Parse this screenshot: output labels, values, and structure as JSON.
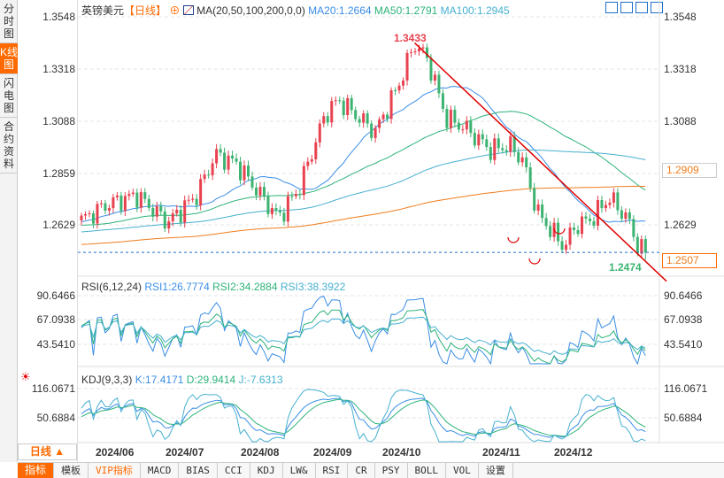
{
  "vertical_tabs": [
    {
      "label": "分时图"
    },
    {
      "label": "K线图",
      "active": true
    },
    {
      "label": "闪电图"
    },
    {
      "label": "合约资料"
    }
  ],
  "header": {
    "symbol": "英镑美元",
    "period": "【日线】",
    "ma_label": "MA(20,50,100,200,0,0)",
    "ma20": "MA20:1.2664",
    "ma50": "MA50:1.2791",
    "ma100": "MA100:1.2945"
  },
  "price_axis": {
    "labels": [
      "1.3548",
      "1.3318",
      "1.3088",
      "1.2859",
      "1.2629"
    ],
    "ma200_value": "1.2909",
    "current_price": "1.2507",
    "high_label": "1.3433",
    "low_label": "1.2474"
  },
  "rsi": {
    "title": "RSI(6,12,24)",
    "rsi1": "RSI1:26.7774",
    "rsi2": "RSI2:34.2884",
    "rsi3": "RSI3:38.3922",
    "labels": [
      "90.6466",
      "67.0938",
      "43.5410"
    ]
  },
  "kdj": {
    "title": "KDJ(9,3,3)",
    "k": "K:17.4171",
    "d": "D:29.9414",
    "j": "J:-7.6313",
    "labels": [
      "116.0671",
      "50.6884"
    ]
  },
  "period_selector": "日线 ▲",
  "dates": [
    "2024/06",
    "2024/07",
    "2024/08",
    "2024/09",
    "2024/10",
    "2024/11",
    "2024/12"
  ],
  "bottom_tabs": [
    "指标",
    "模板",
    "VIP指标",
    "MACD",
    "BIAS",
    "CCI",
    "KDJ",
    "LW&",
    "RSI",
    "CR",
    "PSY",
    "BOLL",
    "VOL",
    "设置"
  ],
  "colors": {
    "up": "#e8414f",
    "down": "#3cb371",
    "ma20": "#3a8ee6",
    "ma50": "#2db37a",
    "ma100": "#46b0d0",
    "ma200": "#f07d1e",
    "accent": "#ff6a00",
    "trend": "#e00000"
  },
  "chart_data": {
    "type": "candlestick",
    "price_range": [
      1.24,
      1.358
    ],
    "keypoints": [
      [
        "2024/05/22",
        1.265
      ],
      [
        "2024/06/01",
        1.272
      ],
      [
        "2024/06/12",
        1.276
      ],
      [
        "2024/06/24",
        1.264
      ],
      [
        "2024/07/05",
        1.276
      ],
      [
        "2024/07/12",
        1.294
      ],
      [
        "2024/07/20",
        1.29
      ],
      [
        "2024/08/05",
        1.266
      ],
      [
        "2024/08/13",
        1.279
      ],
      [
        "2024/08/23",
        1.312
      ],
      [
        "2024/08/28",
        1.318
      ],
      [
        "2024/09/05",
        1.31
      ],
      [
        "2024/09/11",
        1.304
      ],
      [
        "2024/09/20",
        1.325
      ],
      [
        "2024/09/26",
        1.343
      ],
      [
        "2024/10/01",
        1.336
      ],
      [
        "2024/10/08",
        1.31
      ],
      [
        "2024/10/15",
        1.306
      ],
      [
        "2024/10/25",
        1.296
      ],
      [
        "2024/11/01",
        1.298
      ],
      [
        "2024/11/06",
        1.292
      ],
      [
        "2024/11/12",
        1.268
      ],
      [
        "2024/11/22",
        1.253
      ],
      [
        "2024/11/26",
        1.262
      ],
      [
        "2024/12/03",
        1.266
      ],
      [
        "2024/12/09",
        1.275
      ],
      [
        "2024/12/16",
        1.266
      ],
      [
        "2024/12/20",
        1.254
      ],
      [
        "2024/12/23",
        1.25
      ]
    ],
    "high": 1.3433,
    "low": 1.2474,
    "trendline": [
      [
        1.3433,
        "2024/09/26"
      ],
      [
        1.238,
        "2024/12/31"
      ]
    ]
  }
}
